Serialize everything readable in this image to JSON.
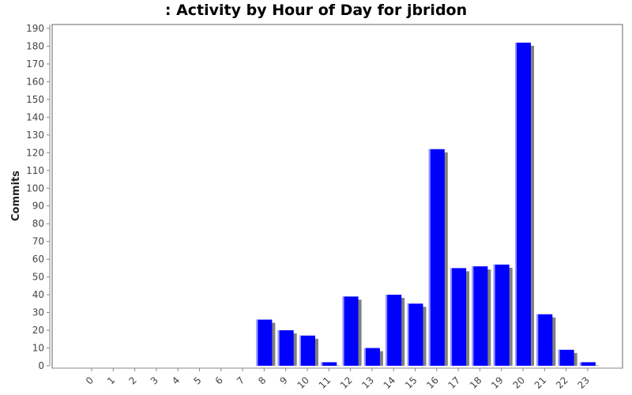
{
  "chart_data": {
    "type": "bar",
    "title": ": Activity by Hour of Day for jbridon",
    "xlabel": "",
    "ylabel": "Commits",
    "categories": [
      "0",
      "1",
      "2",
      "3",
      "4",
      "5",
      "6",
      "7",
      "8",
      "9",
      "10",
      "11",
      "12",
      "13",
      "14",
      "15",
      "16",
      "17",
      "18",
      "19",
      "20",
      "21",
      "22",
      "23"
    ],
    "values": [
      0,
      0,
      0,
      0,
      0,
      0,
      0,
      0,
      26,
      20,
      17,
      2,
      39,
      10,
      40,
      35,
      122,
      55,
      56,
      57,
      182,
      29,
      9,
      2
    ],
    "ylim": [
      0,
      190
    ],
    "yticks": [
      0,
      10,
      20,
      30,
      40,
      50,
      60,
      70,
      80,
      90,
      100,
      110,
      120,
      130,
      140,
      150,
      160,
      170,
      180,
      190
    ],
    "grid": false,
    "legend": "none",
    "colors": {
      "bar": "#0000ff",
      "bar_shadow": "#808080",
      "axis": "#888888",
      "plot_border": "#666666"
    }
  }
}
